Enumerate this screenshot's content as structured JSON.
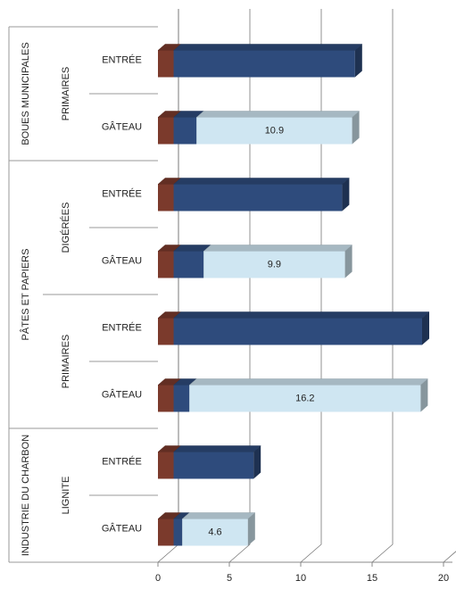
{
  "chart_data": {
    "type": "bar3d-stacked-horizontal",
    "categories": [
      "ENTRÉE",
      "GÂTEAU",
      "ENTRÉE",
      "GÂTEAU",
      "ENTRÉE",
      "GÂTEAU",
      "ENTRÉE",
      "GÂTEAU"
    ],
    "groups": [
      {
        "label": "BOUES MUNICIPALES",
        "subgroups": [
          "PRIMAIRES"
        ]
      },
      {
        "label": "PÂTES ET PAPIERS",
        "subgroups": [
          "DIGÉRÉES",
          "PRIMAIRES"
        ]
      },
      {
        "label": "INDUSTRIE DU CHARBON",
        "subgroups": [
          "LIGNITE"
        ]
      }
    ],
    "series": [
      {
        "color": "#7b3a2c",
        "values": [
          1.1,
          1.1,
          1.1,
          1.1,
          1.1,
          1.1,
          1.1,
          1.1
        ]
      },
      {
        "color": "#2e4b7c",
        "values": [
          12.7,
          1.6,
          11.8,
          2.1,
          17.4,
          1.1,
          5.6,
          0.6
        ]
      },
      {
        "color": "#cfe6f2",
        "values": [
          null,
          10.9,
          null,
          9.9,
          null,
          16.2,
          null,
          4.6
        ]
      }
    ],
    "xlim": [
      0,
      20
    ],
    "xticks": [
      0,
      5,
      10,
      15,
      20
    ],
    "grid": true
  }
}
